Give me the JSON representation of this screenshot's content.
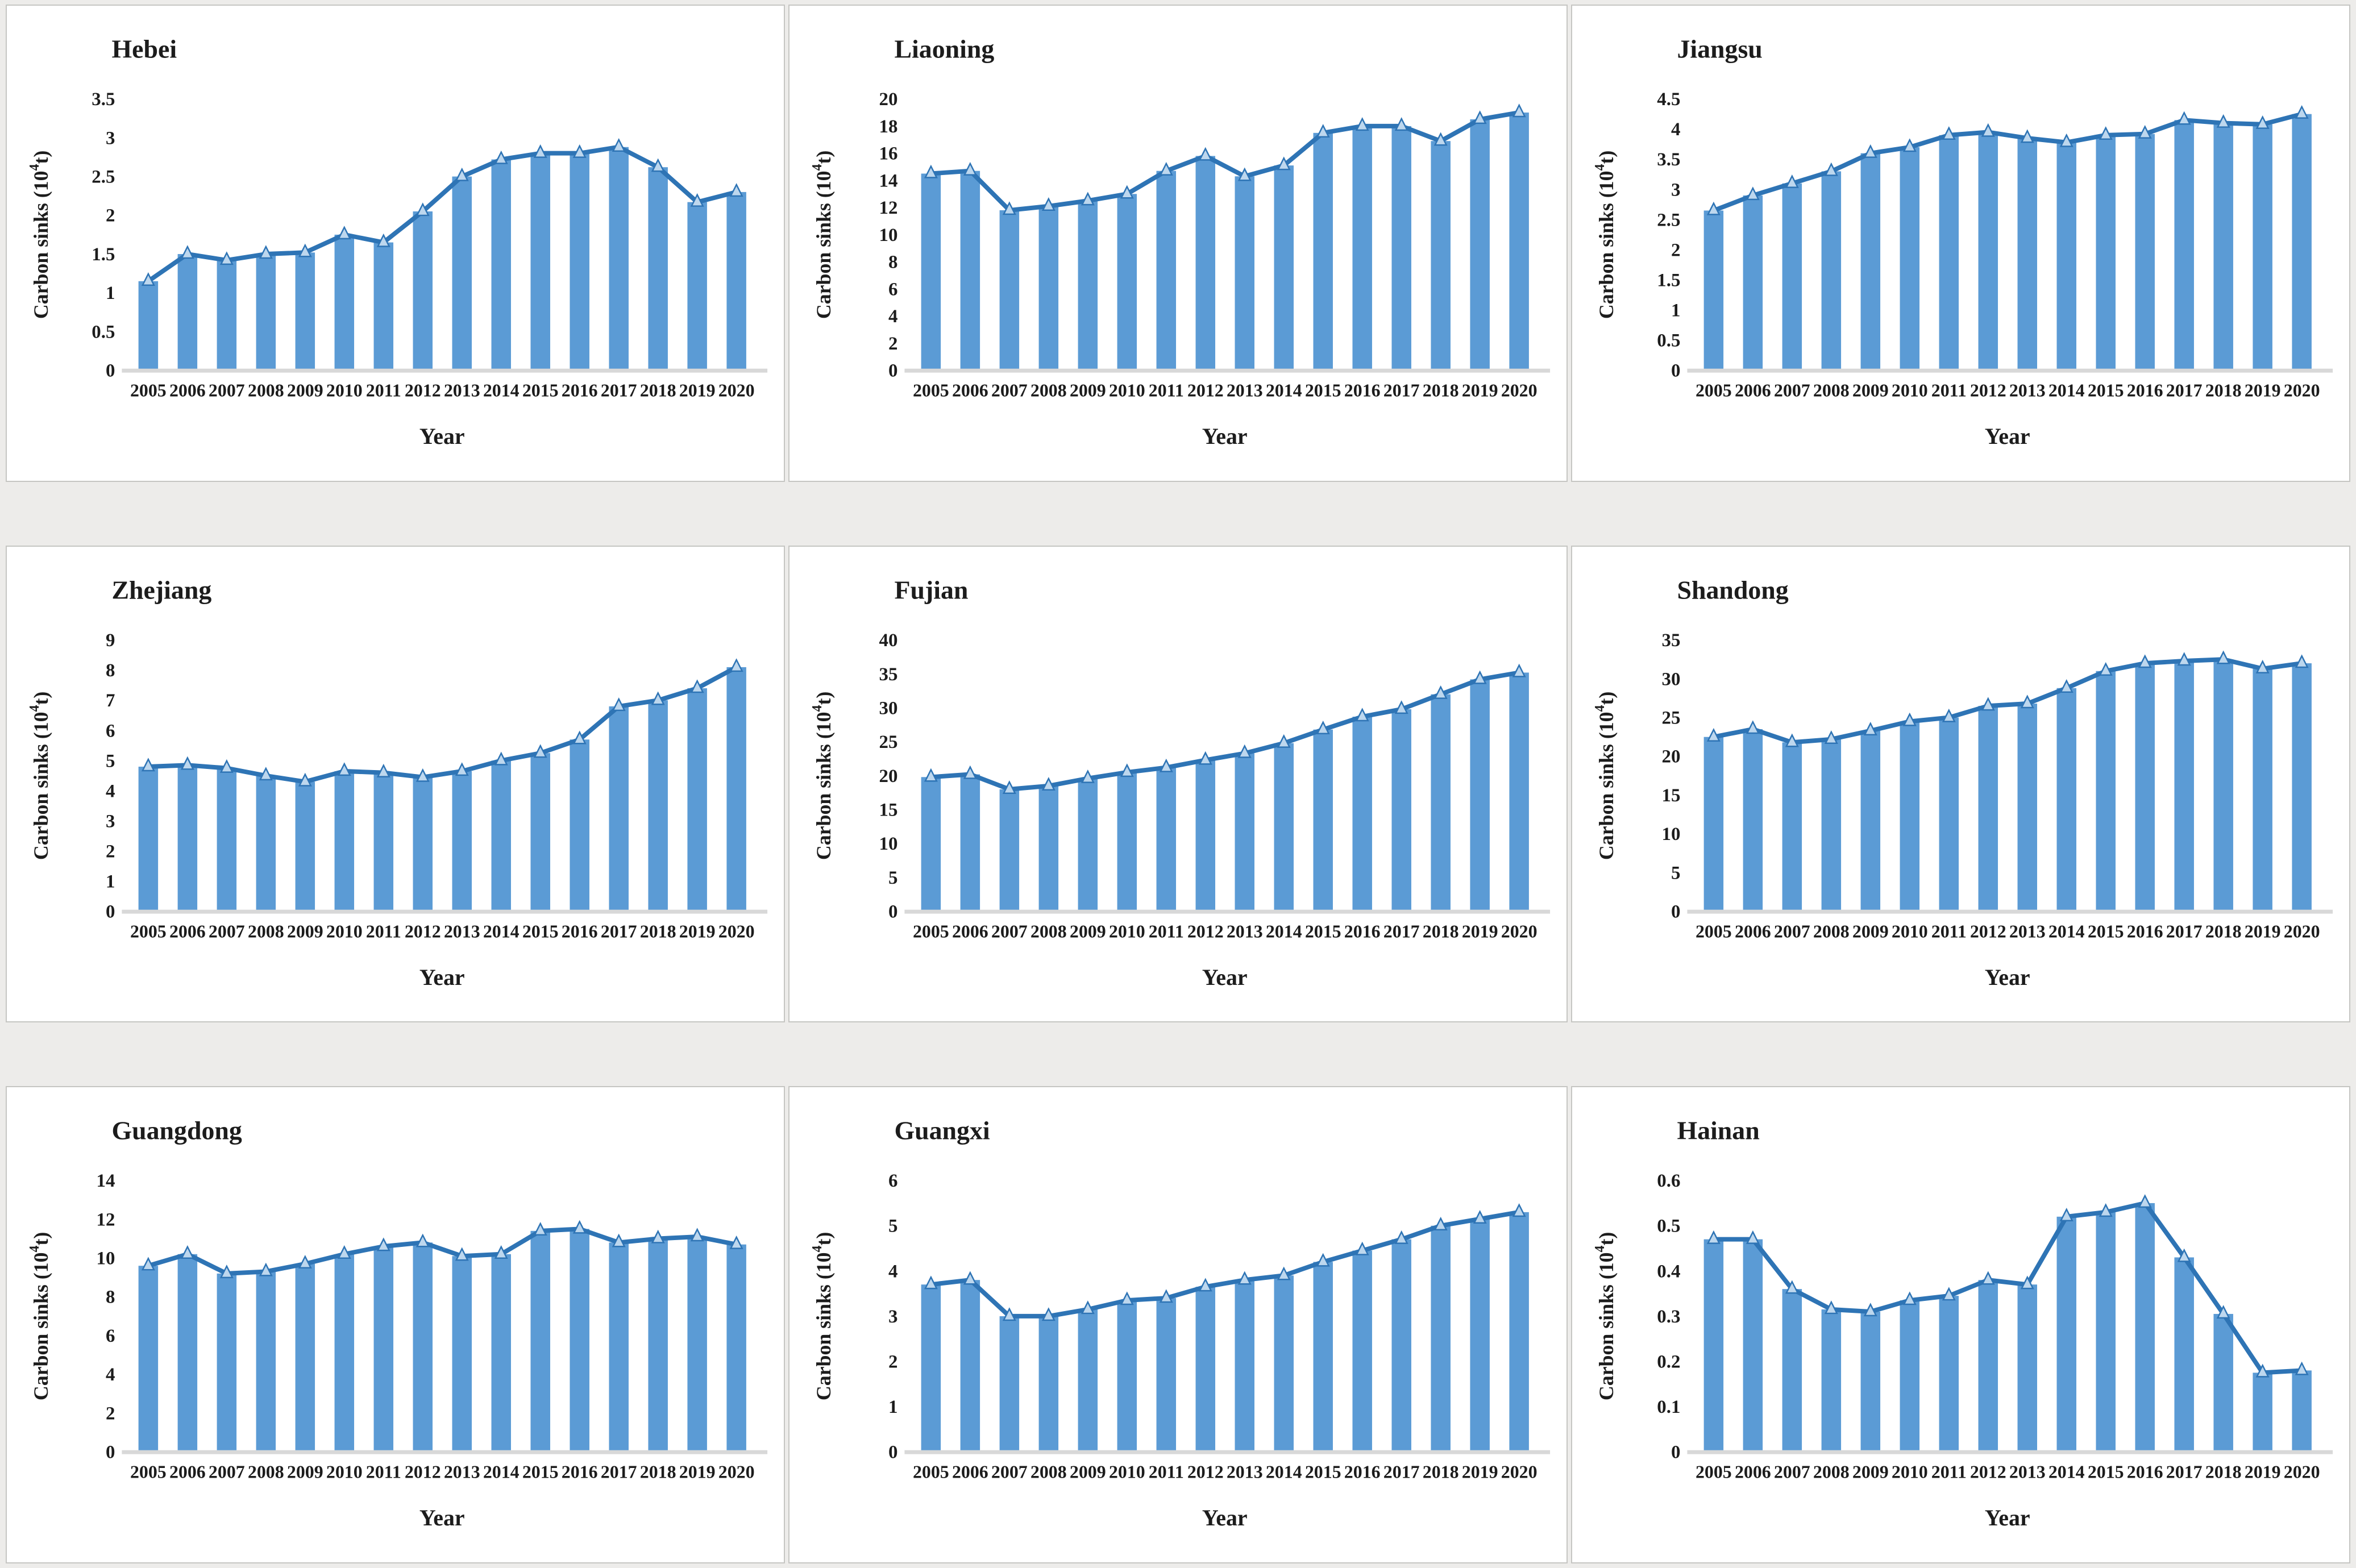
{
  "page": {
    "background": "#edecea",
    "panel_background": "#ffffff",
    "panel_border": "#c6c6c3"
  },
  "style": {
    "bar_color": "#5b9bd5",
    "line_color": "#2e74b5",
    "marker_fill": "#bdd7ee",
    "marker_stroke": "#2e74b5",
    "axis_color": "#d8d8d8",
    "text_color": "#1c1c1c"
  },
  "shared": {
    "xlabel": "Year",
    "ylabel": "Carbon sinks (10⁴t)",
    "ylabel_prefix": "Carbon sinks (10",
    "ylabel_sup": "4",
    "ylabel_suffix": "t)",
    "years": [
      "2005",
      "2006",
      "2007",
      "2008",
      "2009",
      "2010",
      "2011",
      "2012",
      "2013",
      "2014",
      "2015",
      "2016",
      "2017",
      "2018",
      "2019",
      "2020"
    ]
  },
  "chart_data": [
    {
      "type": "bar",
      "overlay": "line-with-triangle-markers",
      "grid": false,
      "legend": false,
      "title": "Hebei",
      "xlabel": "Year",
      "ylabel": "Carbon sinks (10⁴t)",
      "categories": [
        "2005",
        "2006",
        "2007",
        "2008",
        "2009",
        "2010",
        "2011",
        "2012",
        "2013",
        "2014",
        "2015",
        "2016",
        "2017",
        "2018",
        "2019",
        "2020"
      ],
      "values": [
        1.15,
        1.5,
        1.42,
        1.5,
        1.52,
        1.75,
        1.65,
        2.05,
        2.5,
        2.72,
        2.8,
        2.8,
        2.88,
        2.62,
        2.17,
        2.3
      ],
      "ylim": [
        0,
        3.5
      ],
      "ystep": 0.5
    },
    {
      "type": "bar",
      "overlay": "line-with-triangle-markers",
      "grid": false,
      "legend": false,
      "title": "Liaoning",
      "xlabel": "Year",
      "ylabel": "Carbon sinks (10⁴t)",
      "categories": [
        "2005",
        "2006",
        "2007",
        "2008",
        "2009",
        "2010",
        "2011",
        "2012",
        "2013",
        "2014",
        "2015",
        "2016",
        "2017",
        "2018",
        "2019",
        "2020"
      ],
      "values": [
        14.5,
        14.7,
        11.8,
        12.1,
        12.5,
        13.0,
        14.7,
        15.8,
        14.3,
        15.1,
        17.5,
        18.0,
        18.0,
        16.9,
        18.5,
        19.0
      ],
      "ylim": [
        0,
        20
      ],
      "ystep": 2
    },
    {
      "type": "bar",
      "overlay": "line-with-triangle-markers",
      "grid": false,
      "legend": false,
      "title": "Jiangsu",
      "xlabel": "Year",
      "ylabel": "Carbon sinks (10⁴t)",
      "categories": [
        "2005",
        "2006",
        "2007",
        "2008",
        "2009",
        "2010",
        "2011",
        "2012",
        "2013",
        "2014",
        "2015",
        "2016",
        "2017",
        "2018",
        "2019",
        "2020"
      ],
      "values": [
        2.65,
        2.9,
        3.1,
        3.3,
        3.6,
        3.7,
        3.9,
        3.95,
        3.85,
        3.78,
        3.9,
        3.92,
        4.15,
        4.1,
        4.08,
        4.25
      ],
      "ylim": [
        0,
        4.5
      ],
      "ystep": 0.5
    },
    {
      "type": "bar",
      "overlay": "line-with-triangle-markers",
      "grid": false,
      "legend": false,
      "title": "Zhejiang",
      "xlabel": "Year",
      "ylabel": "Carbon sinks (10⁴t)",
      "categories": [
        "2005",
        "2006",
        "2007",
        "2008",
        "2009",
        "2010",
        "2011",
        "2012",
        "2013",
        "2014",
        "2015",
        "2016",
        "2017",
        "2018",
        "2019",
        "2020"
      ],
      "values": [
        4.8,
        4.85,
        4.75,
        4.5,
        4.3,
        4.65,
        4.6,
        4.45,
        4.65,
        5.0,
        5.25,
        5.7,
        6.8,
        7.0,
        7.4,
        8.1
      ],
      "ylim": [
        0,
        9
      ],
      "ystep": 1
    },
    {
      "type": "bar",
      "overlay": "line-with-triangle-markers",
      "grid": false,
      "legend": false,
      "title": "Fujian",
      "xlabel": "Year",
      "ylabel": "Carbon sinks (10⁴t)",
      "categories": [
        "2005",
        "2006",
        "2007",
        "2008",
        "2009",
        "2010",
        "2011",
        "2012",
        "2013",
        "2014",
        "2015",
        "2016",
        "2017",
        "2018",
        "2019",
        "2020"
      ],
      "values": [
        19.8,
        20.2,
        18.0,
        18.5,
        19.6,
        20.5,
        21.2,
        22.3,
        23.3,
        24.8,
        26.8,
        28.7,
        29.8,
        32.0,
        34.2,
        35.2
      ],
      "ylim": [
        0,
        40
      ],
      "ystep": 5
    },
    {
      "type": "bar",
      "overlay": "line-with-triangle-markers",
      "grid": false,
      "legend": false,
      "title": "Shandong",
      "xlabel": "Year",
      "ylabel": "Carbon sinks (10⁴t)",
      "categories": [
        "2005",
        "2006",
        "2007",
        "2008",
        "2009",
        "2010",
        "2011",
        "2012",
        "2013",
        "2014",
        "2015",
        "2016",
        "2017",
        "2018",
        "2019",
        "2020"
      ],
      "values": [
        22.5,
        23.5,
        21.8,
        22.2,
        23.3,
        24.5,
        25.0,
        26.5,
        26.8,
        28.8,
        31.0,
        32.0,
        32.3,
        32.5,
        31.3,
        32.0
      ],
      "ylim": [
        0,
        35
      ],
      "ystep": 5
    },
    {
      "type": "bar",
      "overlay": "line-with-triangle-markers",
      "grid": false,
      "legend": false,
      "title": "Guangdong",
      "xlabel": "Year",
      "ylabel": "Carbon sinks (10⁴t)",
      "categories": [
        "2005",
        "2006",
        "2007",
        "2008",
        "2009",
        "2010",
        "2011",
        "2012",
        "2013",
        "2014",
        "2015",
        "2016",
        "2017",
        "2018",
        "2019",
        "2020"
      ],
      "values": [
        9.6,
        10.2,
        9.2,
        9.3,
        9.7,
        10.2,
        10.6,
        10.8,
        10.1,
        10.2,
        11.4,
        11.5,
        10.8,
        11.0,
        11.1,
        10.7
      ],
      "ylim": [
        0,
        14
      ],
      "ystep": 2
    },
    {
      "type": "bar",
      "overlay": "line-with-triangle-markers",
      "grid": false,
      "legend": false,
      "title": "Guangxi",
      "xlabel": "Year",
      "ylabel": "Carbon sinks (10⁴t)",
      "categories": [
        "2005",
        "2006",
        "2007",
        "2008",
        "2009",
        "2010",
        "2011",
        "2012",
        "2013",
        "2014",
        "2015",
        "2016",
        "2017",
        "2018",
        "2019",
        "2020"
      ],
      "values": [
        3.7,
        3.8,
        3.0,
        3.0,
        3.15,
        3.35,
        3.4,
        3.65,
        3.8,
        3.9,
        4.2,
        4.45,
        4.7,
        5.0,
        5.15,
        5.3
      ],
      "ylim": [
        0,
        6
      ],
      "ystep": 1
    },
    {
      "type": "bar",
      "overlay": "line-with-triangle-markers",
      "grid": false,
      "legend": false,
      "title": "Hainan",
      "xlabel": "Year",
      "ylabel": "Carbon sinks (10⁴t)",
      "categories": [
        "2005",
        "2006",
        "2007",
        "2008",
        "2009",
        "2010",
        "2011",
        "2012",
        "2013",
        "2014",
        "2015",
        "2016",
        "2017",
        "2018",
        "2019",
        "2020"
      ],
      "values": [
        0.47,
        0.47,
        0.36,
        0.315,
        0.31,
        0.335,
        0.345,
        0.38,
        0.37,
        0.52,
        0.53,
        0.55,
        0.43,
        0.305,
        0.175,
        0.18
      ],
      "ylim": [
        0,
        0.6
      ],
      "ystep": 0.1
    }
  ]
}
